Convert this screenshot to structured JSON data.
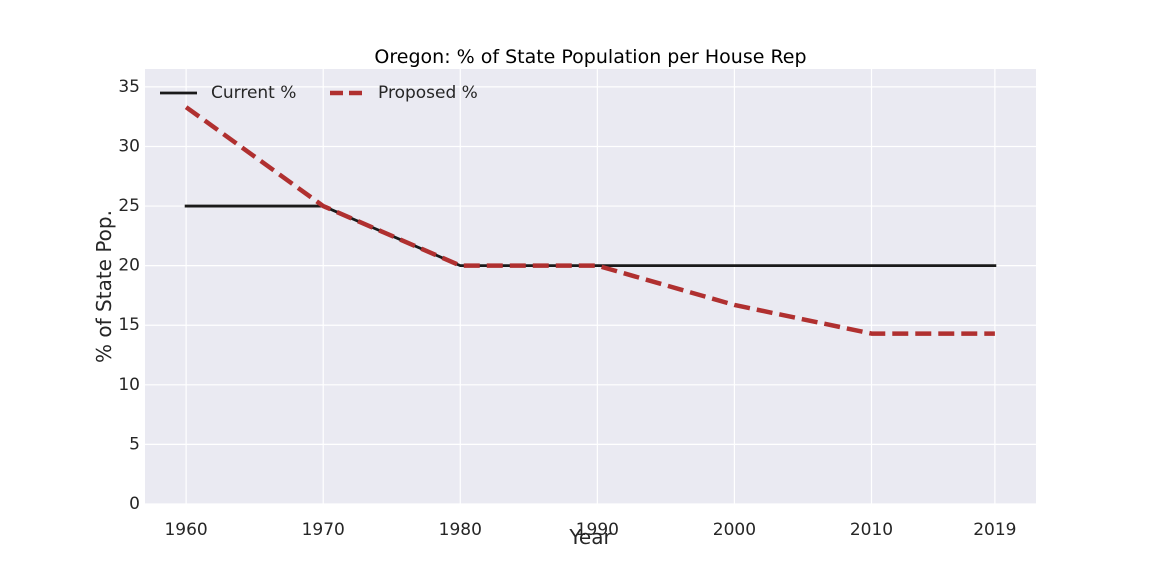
{
  "chart_data": {
    "type": "line",
    "title": "Oregon: % of State Population per House Rep",
    "xlabel": "Year",
    "ylabel": "% of State Pop.",
    "x": [
      1960,
      1970,
      1980,
      1990,
      2000,
      2010,
      2019
    ],
    "xticks": [
      "1960",
      "1970",
      "1980",
      "1990",
      "2000",
      "2010",
      "2019"
    ],
    "yticks": [
      0,
      5,
      10,
      15,
      20,
      25,
      30,
      35
    ],
    "xlim": [
      1957,
      2022
    ],
    "ylim": [
      0,
      36.5
    ],
    "grid": true,
    "legend_position": "top-left",
    "background_color": "#eaeaf2",
    "series": [
      {
        "name": "Current %",
        "values": [
          25,
          25,
          20,
          20,
          20,
          20,
          20
        ],
        "color": "#1a1a1a",
        "style": "solid"
      },
      {
        "name": "Proposed %",
        "values": [
          33.3,
          25,
          20,
          20,
          16.7,
          14.3,
          14.3
        ],
        "color": "#b03030",
        "style": "dashed"
      }
    ]
  }
}
